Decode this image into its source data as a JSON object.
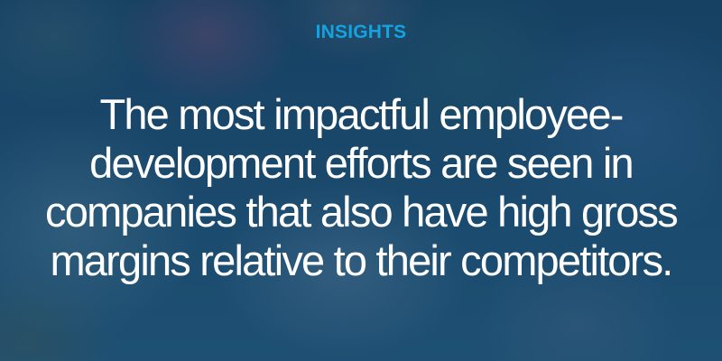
{
  "label": "INSIGHTS",
  "quote_lines": [
    "The most impactful employee-",
    "development efforts are seen in",
    "companies that also have high gross",
    "margins relative to their competitors."
  ],
  "colors": {
    "accent": "#12a3e0",
    "overlay": "#1d4a6b",
    "text": "#ffffff"
  }
}
